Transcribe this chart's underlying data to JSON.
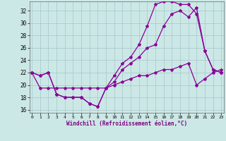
{
  "xlabel": "Windchill (Refroidissement éolien,°C)",
  "xlim": [
    -0.3,
    23.3
  ],
  "ylim": [
    15.5,
    33.5
  ],
  "yticks": [
    16,
    18,
    20,
    22,
    24,
    26,
    28,
    30,
    32
  ],
  "xticks": [
    0,
    1,
    2,
    3,
    4,
    5,
    6,
    7,
    8,
    9,
    10,
    11,
    12,
    13,
    14,
    15,
    16,
    17,
    18,
    19,
    20,
    21,
    22,
    23
  ],
  "bg_color": "#cce8e6",
  "grid_color": "#aacccc",
  "line_color": "#880099",
  "line1_y": [
    22,
    21.5,
    22,
    18.5,
    18,
    18,
    18,
    17,
    16.5,
    19.5,
    21.5,
    23.5,
    24.5,
    26.5,
    29.5,
    33.0,
    33.5,
    33.5,
    33.0,
    33.0,
    31.5,
    25.5,
    22.5,
    22.0
  ],
  "line2_y": [
    22,
    21.5,
    22,
    18.5,
    18,
    18,
    18,
    17,
    16.5,
    19.5,
    20.5,
    22.5,
    23.5,
    24.5,
    26.0,
    26.5,
    29.5,
    31.5,
    32.0,
    31.0,
    32.5,
    25.5,
    22.5,
    22.0
  ],
  "line3_y": [
    22,
    19.5,
    19.5,
    19.5,
    19.5,
    19.5,
    19.5,
    19.5,
    19.5,
    19.5,
    20.0,
    20.5,
    21.0,
    21.5,
    21.5,
    22.0,
    22.5,
    22.5,
    23.0,
    23.5,
    20.0,
    21.0,
    22.0,
    22.5
  ]
}
